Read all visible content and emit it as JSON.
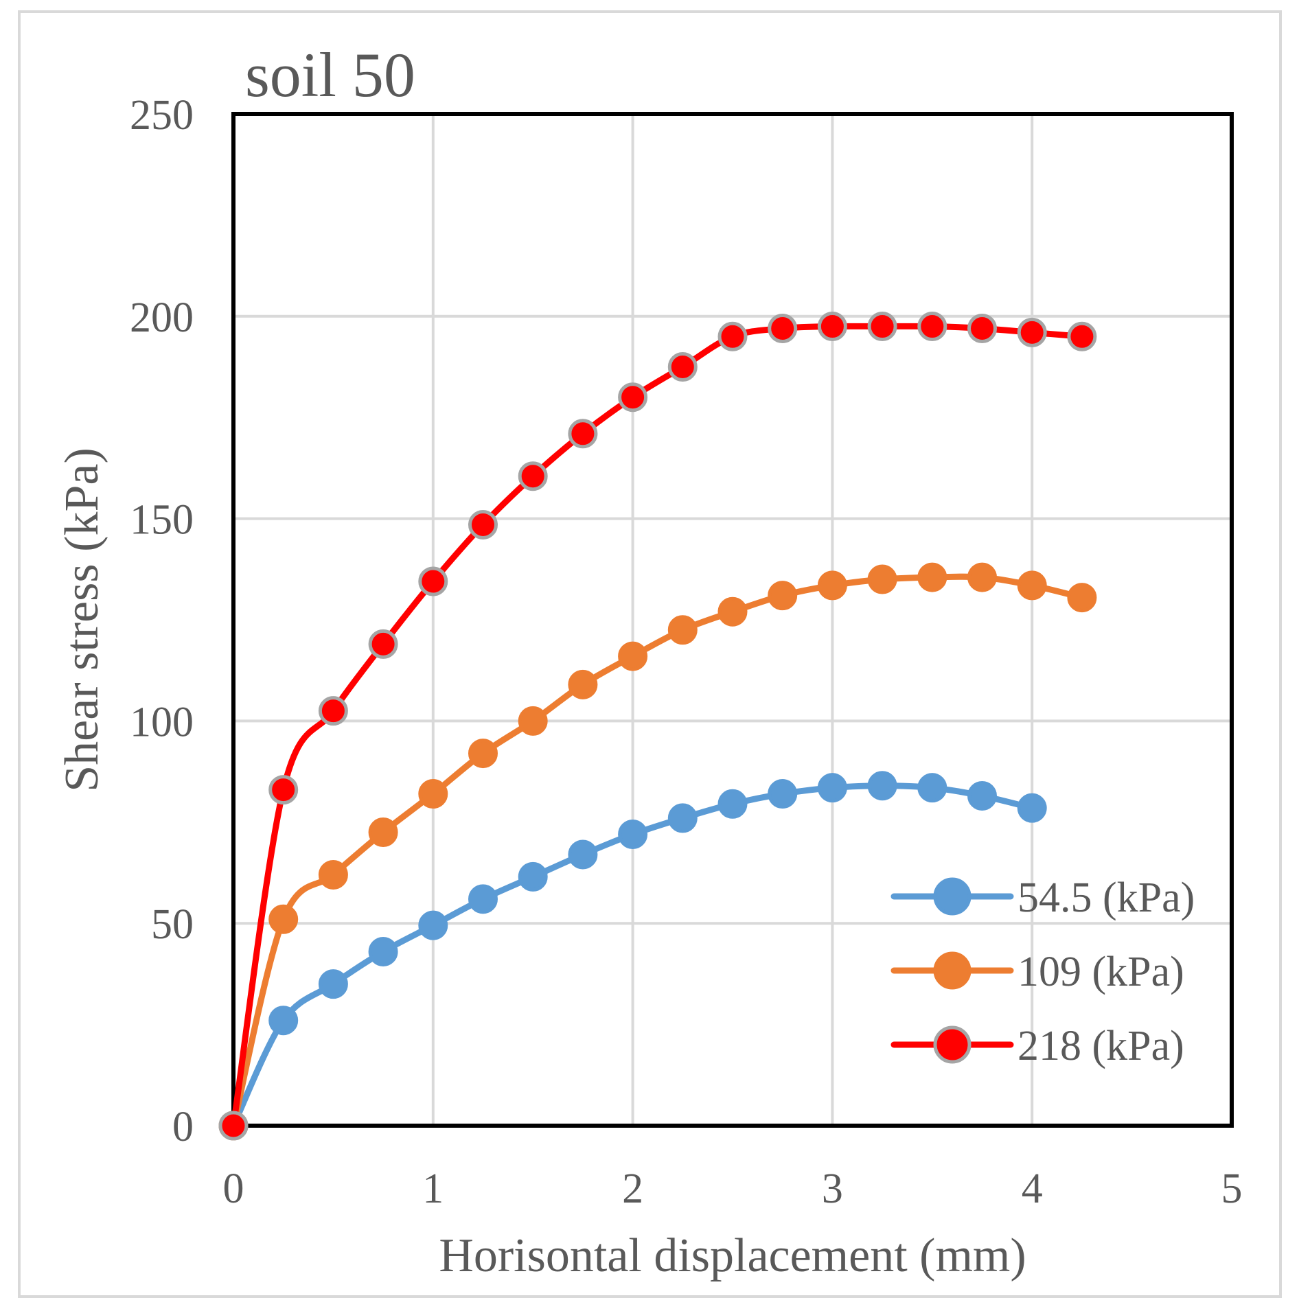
{
  "chart_data": {
    "type": "line",
    "title": "soil 50",
    "xlabel": "Horisontal displacement (mm)",
    "ylabel": "Shear stress (kPa)",
    "xlim": [
      0,
      5
    ],
    "ylim": [
      0,
      250
    ],
    "xticks": [
      0,
      1,
      2,
      3,
      4,
      5
    ],
    "yticks": [
      0,
      50,
      100,
      150,
      200,
      250
    ],
    "xtick_labels": [
      "0",
      "1",
      "2",
      "3",
      "4",
      "5"
    ],
    "ytick_labels": [
      "0",
      "50",
      "100",
      "150",
      "200",
      "250"
    ],
    "grid": true,
    "legend_position": "bottom-right",
    "series": [
      {
        "name": "54.5 (kPa)",
        "color": "#5B9BD5",
        "marker_edge": "#5B9BD5",
        "x": [
          0,
          0.25,
          0.5,
          0.75,
          1.0,
          1.25,
          1.5,
          1.75,
          2.0,
          2.25,
          2.5,
          2.75,
          3.0,
          3.25,
          3.5,
          3.75,
          4.0
        ],
        "y": [
          0,
          26,
          35,
          43,
          49.5,
          56,
          61.5,
          67,
          72,
          76,
          79.5,
          82,
          83.5,
          84,
          83.5,
          81.5,
          78.5
        ]
      },
      {
        "name": "109 (kPa)",
        "color": "#ED7D31",
        "marker_edge": "#ED7D31",
        "x": [
          0,
          0.25,
          0.5,
          0.75,
          1.0,
          1.25,
          1.5,
          1.75,
          2.0,
          2.25,
          2.5,
          2.75,
          3.0,
          3.25,
          3.5,
          3.75,
          4.0,
          4.25
        ],
        "y": [
          0,
          51,
          62,
          72.5,
          82,
          92,
          100,
          109,
          116,
          122.5,
          127,
          131,
          133.5,
          135,
          135.5,
          135.5,
          133.5,
          130.5
        ]
      },
      {
        "name": "218 (kPa)",
        "color": "#FF0000",
        "marker_edge": "#A5A5A5",
        "x": [
          0,
          0.25,
          0.5,
          0.75,
          1.0,
          1.25,
          1.5,
          1.75,
          2.0,
          2.25,
          2.5,
          2.75,
          3.0,
          3.25,
          3.5,
          3.75,
          4.0,
          4.25
        ],
        "y": [
          0,
          83,
          102.5,
          119,
          134.5,
          148.5,
          160.5,
          171,
          180,
          187.5,
          195,
          197,
          197.5,
          197.5,
          197.5,
          197,
          196,
          195
        ]
      }
    ]
  }
}
